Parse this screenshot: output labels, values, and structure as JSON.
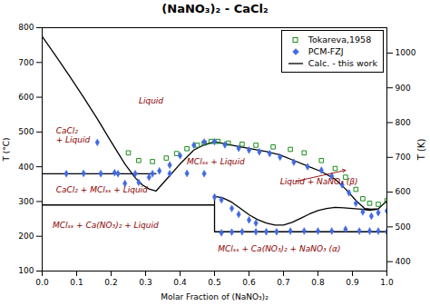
{
  "chart_data": {
    "type": "line",
    "title": "(NaNO₃)₂ - CaCl₂",
    "xlabel": "Molar Fraction of (NaNO₃)₂",
    "ylabel": "T (°C)",
    "y2label": "T (K)",
    "xlim": [
      0,
      1
    ],
    "ylim": [
      100,
      800
    ],
    "y2lim": [
      373,
      1073
    ],
    "xticks": [
      {
        "value": 0,
        "label": "0.0"
      },
      0.1,
      0.2,
      0.3,
      0.4,
      0.5,
      0.6,
      0.7,
      0.8,
      0.9,
      {
        "value": 1.0,
        "label": "1.0"
      }
    ],
    "yticks": [
      100,
      200,
      300,
      400,
      500,
      600,
      700,
      800
    ],
    "y2ticks": [
      400,
      500,
      600,
      700,
      800,
      900,
      1000
    ],
    "legend": "upper right",
    "series": [
      {
        "name": "Tokareva,1958",
        "type": "scatter",
        "marker": "open-square",
        "color": "green",
        "x": [
          0.25,
          0.28,
          0.32,
          0.36,
          0.39,
          0.42,
          0.45,
          0.47,
          0.49,
          0.51,
          0.54,
          0.58,
          0.62,
          0.67,
          0.72,
          0.76,
          0.81,
          0.85,
          0.88,
          0.91,
          0.93,
          0.95,
          0.975,
          1.0
        ],
        "values": [
          440,
          418,
          415,
          425,
          438,
          452,
          462,
          468,
          473,
          473,
          468,
          465,
          462,
          457,
          450,
          440,
          418,
          395,
          370,
          335,
          308,
          295,
          292,
          302
        ]
      },
      {
        "name": "PCM-FZJ",
        "type": "scatter",
        "marker": "diamond",
        "color": "royalblue",
        "x": [
          0.16,
          0.21,
          0.24,
          0.28,
          0.31,
          0.34,
          0.37,
          0.4,
          0.44,
          0.47,
          0.5,
          0.53,
          0.57,
          0.6,
          0.63,
          0.66,
          0.69,
          0.73,
          0.77,
          0.81,
          0.84,
          0.87,
          0.89,
          0.91,
          0.93,
          0.955,
          0.975,
          1.0,
          0.07,
          0.12,
          0.17,
          0.22,
          0.27,
          0.32,
          0.37,
          0.42,
          0.47,
          0.52,
          0.55,
          0.58,
          0.62,
          0.65,
          0.68,
          0.72,
          0.76,
          0.8,
          0.84,
          0.88,
          0.92,
          0.95,
          0.975,
          1.0,
          0.5,
          0.52,
          0.55,
          0.57,
          0.6,
          0.62
        ],
        "values": [
          470,
          383,
          352,
          355,
          370,
          388,
          405,
          432,
          462,
          471,
          472,
          463,
          453,
          448,
          443,
          438,
          428,
          413,
          400,
          390,
          373,
          348,
          325,
          295,
          270,
          258,
          268,
          273,
          380,
          381,
          380,
          380,
          380,
          380,
          380,
          381,
          380,
          210,
          212,
          213,
          213,
          213,
          213,
          215,
          215,
          215,
          215,
          220,
          215,
          215,
          215,
          213,
          313,
          305,
          280,
          263,
          247,
          238
        ]
      },
      {
        "name": "Calc. - this work",
        "type": "line",
        "line_style": "solid",
        "color": "black",
        "x": [
          0.0,
          0.04,
          0.08,
          0.12,
          0.16,
          0.2,
          0.24,
          0.27,
          0.29,
          0.31,
          0.33,
          null,
          0.33,
          0.36,
          0.4,
          0.44,
          0.47,
          0.5,
          0.53,
          0.57,
          0.61,
          0.65,
          0.69,
          0.73,
          0.77,
          0.81,
          0.85,
          0.88,
          0.91,
          0.935,
          0.955,
          0.975,
          1.0,
          null,
          0.0,
          0.33,
          null,
          0.0,
          0.5,
          null,
          0.5,
          1.0,
          null,
          0.5,
          0.5,
          null,
          0.5,
          0.525,
          0.55,
          0.575,
          0.6,
          0.625,
          0.65,
          0.675,
          0.7,
          0.725,
          0.75,
          0.775,
          0.8,
          0.825,
          0.85,
          0.875,
          0.9,
          0.925,
          0.95,
          0.975
        ],
        "values": [
          775,
          718,
          660,
          600,
          538,
          472,
          408,
          368,
          348,
          336,
          330,
          null,
          330,
          363,
          408,
          448,
          463,
          472,
          466,
          458,
          451,
          444,
          434,
          418,
          402,
          386,
          364,
          336,
          303,
          280,
          278,
          279,
          302,
          null,
          380,
          380,
          null,
          290,
          290,
          null,
          213,
          213,
          null,
          213,
          315,
          null,
          315,
          310,
          298,
          280,
          262,
          248,
          238,
          232,
          232,
          240,
          252,
          264,
          274,
          280,
          283,
          282,
          280,
          278,
          275,
          278
        ]
      }
    ],
    "annotations": [
      {
        "text": "Liquid",
        "x": 0.28,
        "y": 590,
        "color": "darkred"
      },
      {
        "text": "CaCl₂\n+ Liquid",
        "x": 0.04,
        "y": 490,
        "color": "darkred"
      },
      {
        "text": "CaCl₂ + MClₛₛ + Liquid",
        "x": 0.04,
        "y": 333,
        "color": "darkred"
      },
      {
        "text": "MClₛₛ + Liquid",
        "x": 0.42,
        "y": 415,
        "color": "darkred"
      },
      {
        "text": "MClₛₛ + Ca(NO₃)₂ + Liquid",
        "x": 0.03,
        "y": 232,
        "color": "darkred"
      },
      {
        "text": "MClₛₛ + Ca(NO₃)₂ + NaNO₃ (α)",
        "x": 0.51,
        "y": 165,
        "color": "darkred"
      },
      {
        "text": "Liquid + NaNO₃ (β)",
        "x": 0.69,
        "y": 358,
        "color": "darkred"
      }
    ],
    "arrows": [
      {
        "x": [
          0.735,
          0.88
        ],
        "y": [
          358,
          390
        ],
        "color": "darkred"
      }
    ]
  }
}
